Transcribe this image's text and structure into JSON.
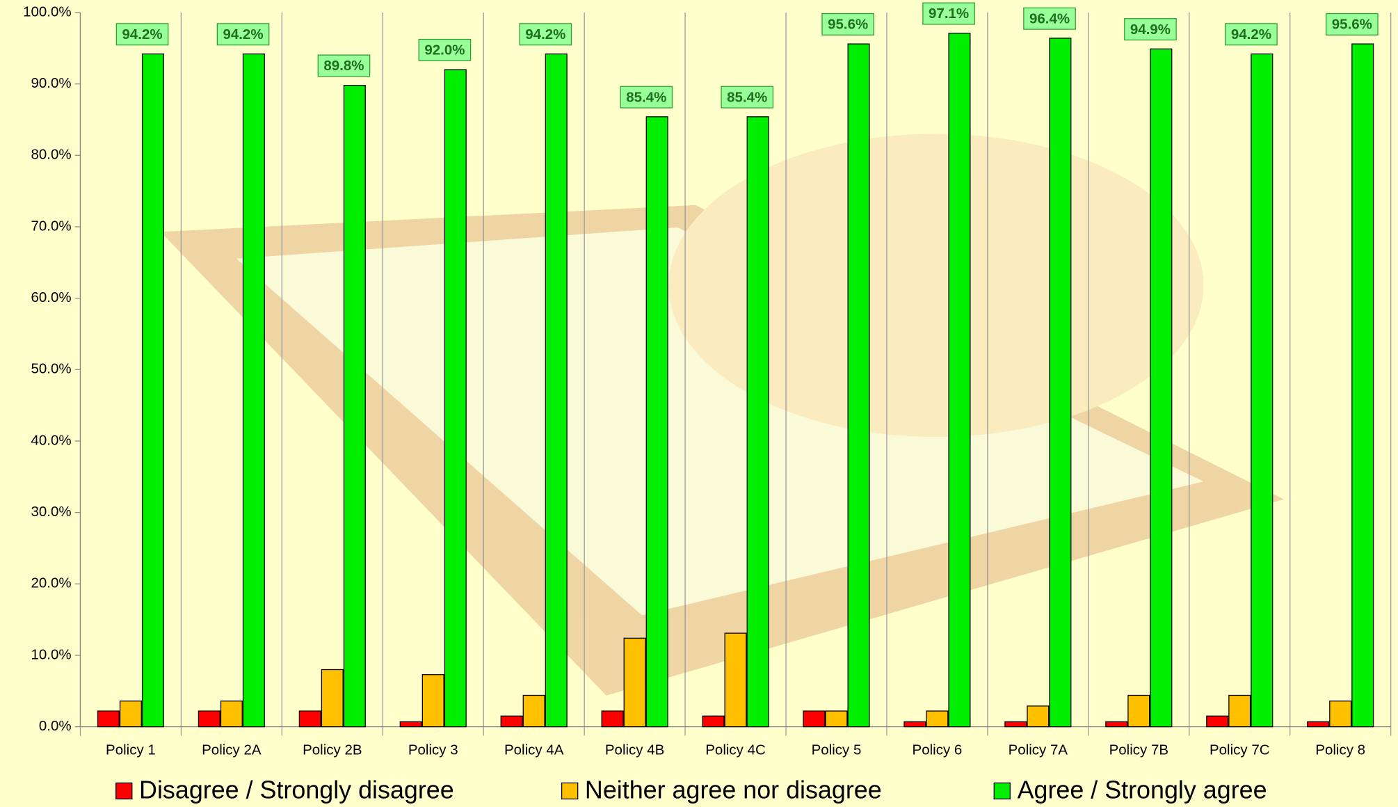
{
  "chart_data": {
    "type": "bar",
    "categories": [
      "Policy 1",
      "Policy 2A",
      "Policy 2B",
      "Policy 3",
      "Policy 4A",
      "Policy 4B",
      "Policy 4C",
      "Policy 5",
      "Policy 6",
      "Policy 7A",
      "Policy 7B",
      "Policy 7C",
      "Policy 8"
    ],
    "series": [
      {
        "name": "Disagree / Strongly disagree",
        "color": "#ff0000",
        "values": [
          2.2,
          2.2,
          2.2,
          0.7,
          1.5,
          2.2,
          1.5,
          2.2,
          0.7,
          0.7,
          0.7,
          1.5,
          0.7
        ]
      },
      {
        "name": "Neither agree nor disagree",
        "color": "#ffc000",
        "values": [
          3.6,
          3.6,
          8.0,
          7.3,
          4.4,
          12.4,
          13.1,
          2.2,
          2.2,
          2.9,
          4.4,
          4.4,
          3.6
        ]
      },
      {
        "name": "Agree /  Strongly agree",
        "color": "#00ee00",
        "values": [
          94.2,
          94.2,
          89.8,
          92.0,
          94.2,
          85.4,
          85.4,
          95.6,
          97.1,
          96.4,
          94.9,
          94.2,
          95.6
        ],
        "value_labels": [
          "94.2%",
          "94.2%",
          "89.8%",
          "92.0%",
          "94.2%",
          "85.4%",
          "85.4%",
          "95.6%",
          "97.1%",
          "96.4%",
          "94.9%",
          "94.2%",
          "95.6%"
        ]
      }
    ],
    "ylim": [
      0,
      100
    ],
    "yticks": [
      {
        "value": 0,
        "label": "0.0%"
      },
      {
        "value": 10,
        "label": "10.0%"
      },
      {
        "value": 20,
        "label": "20.0%"
      },
      {
        "value": 30,
        "label": "30.0%"
      },
      {
        "value": 40,
        "label": "40.0%"
      },
      {
        "value": 50,
        "label": "50.0%"
      },
      {
        "value": 60,
        "label": "60.0%"
      },
      {
        "value": 70,
        "label": "70.0%"
      },
      {
        "value": 80,
        "label": "80.0%"
      },
      {
        "value": 90,
        "label": "90.0%"
      },
      {
        "value": 100,
        "label": "100.0%"
      }
    ],
    "legend": "bottom"
  }
}
